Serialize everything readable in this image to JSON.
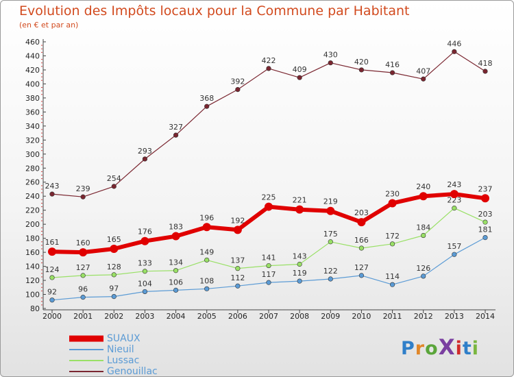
{
  "header": {
    "title": "Evolution des Impôts locaux pour la Commune par Habitant",
    "subtitle": "(en € et par an)"
  },
  "brand": {
    "logo_text": "ProXiti"
  },
  "legend_items": [
    {
      "label": "SUAUX",
      "color": "#e00000"
    },
    {
      "label": "Nieuil",
      "color": "#5b9bd5"
    },
    {
      "label": "Lussac",
      "color": "#99e066"
    },
    {
      "label": "Genouillac",
      "color": "#7a2630"
    }
  ],
  "chart_data": {
    "type": "line",
    "title": "Evolution des Impôts locaux pour la Commune par Habitant",
    "subtitle": "(en € et par an)",
    "x": [
      "2000",
      "2001",
      "2002",
      "2003",
      "2004",
      "2005",
      "2006",
      "2007",
      "2008",
      "2009",
      "2010",
      "2011",
      "2012",
      "2013",
      "2014"
    ],
    "ylim": [
      80,
      460
    ],
    "yticks": [
      80,
      100,
      120,
      140,
      160,
      180,
      200,
      220,
      240,
      260,
      280,
      300,
      320,
      340,
      360,
      380,
      400,
      420,
      440,
      460
    ],
    "grid": false,
    "legend_position": "bottom-left",
    "series": [
      {
        "name": "Genouillac",
        "color": "#7a2630",
        "values": [
          243,
          239,
          254,
          293,
          327,
          368,
          392,
          422,
          409,
          430,
          420,
          416,
          407,
          446,
          418
        ]
      },
      {
        "name": "Lussac",
        "color": "#99e066",
        "values": [
          124,
          127,
          128,
          133,
          134,
          149,
          137,
          141,
          143,
          175,
          166,
          172,
          184,
          223,
          203
        ]
      },
      {
        "name": "Nieuil",
        "color": "#5b9bd5",
        "values": [
          92,
          96,
          97,
          104,
          106,
          108,
          112,
          117,
          119,
          122,
          127,
          114,
          126,
          157,
          181
        ]
      },
      {
        "name": "SUAUX",
        "color": "#e00000",
        "values": [
          161,
          160,
          165,
          176,
          183,
          196,
          192,
          225,
          221,
          219,
          203,
          230,
          240,
          243,
          237
        ]
      }
    ]
  }
}
